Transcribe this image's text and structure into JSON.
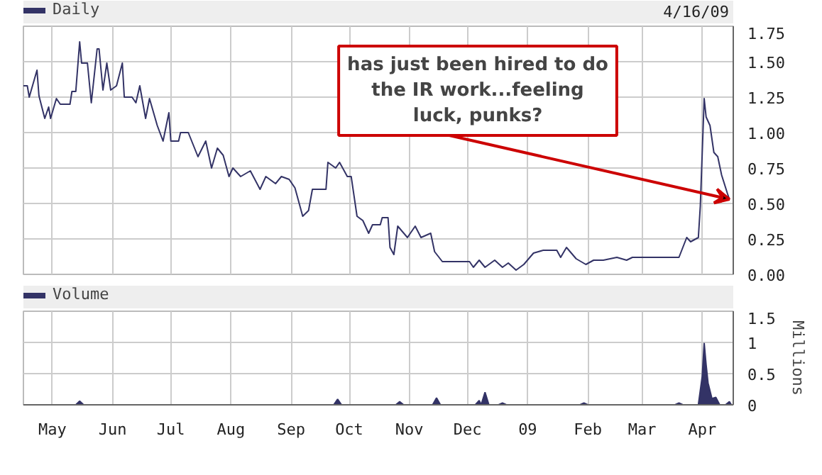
{
  "chart_data": [
    {
      "type": "line",
      "legend": "top left",
      "grid": true,
      "tick_labels": "y",
      "annotations": [
        "4/16/09",
        {
          "text": "has just been hired to do the IR work...feeling luck, punks?",
          "x": "2009-04-15",
          "y": 0.53
        }
      ],
      "xlim": [
        "2008-04-16",
        "2009-04-17"
      ],
      "xticks": [
        {
          "value": "2008-05-01",
          "label": null
        },
        {
          "value": "2008-06-01",
          "label": null
        },
        {
          "value": "2008-07-01",
          "label": null
        },
        {
          "value": "2008-08-01",
          "label": null
        },
        {
          "value": "2008-09-01",
          "label": null
        },
        {
          "value": "2008-10-01",
          "label": null
        },
        {
          "value": "2008-11-01",
          "label": null
        },
        {
          "value": "2008-12-01",
          "label": null
        },
        {
          "value": "2009-01-01",
          "label": null
        },
        {
          "value": "2009-02-01",
          "label": null
        },
        {
          "value": "2009-03-01",
          "label": null
        },
        {
          "value": "2009-04-01",
          "label": null
        }
      ],
      "ylim": [
        0,
        1.75
      ],
      "yticks": [
        {
          "value": 0,
          "label": "0.00"
        },
        {
          "value": 0.25,
          "label": "0.25"
        },
        {
          "value": 0.5,
          "label": "0.50"
        },
        {
          "value": 0.75,
          "label": "0.75"
        },
        {
          "value": 1,
          "label": "1.00"
        },
        {
          "value": 1.25,
          "label": "1.25"
        },
        {
          "value": 1.5,
          "label": "1.50"
        },
        {
          "value": 1.75,
          "label": "1.75"
        }
      ],
      "series": [
        {
          "name": "Daily",
          "color": "#333366",
          "x": [
            "2008-04-16",
            "2008-04-18",
            "2008-04-19",
            "2008-04-23",
            "2008-04-24",
            "2008-04-27",
            "2008-04-29",
            "2008-04-30",
            "2008-05-03",
            "2008-05-05",
            "2008-05-10",
            "2008-05-11",
            "2008-05-13",
            "2008-05-15",
            "2008-05-16",
            "2008-05-19",
            "2008-05-21",
            "2008-05-24",
            "2008-05-25",
            "2008-05-27",
            "2008-05-29",
            "2008-05-31",
            "2008-06-03",
            "2008-06-06",
            "2008-06-07",
            "2008-06-11",
            "2008-06-13",
            "2008-06-15",
            "2008-06-18",
            "2008-06-20",
            "2008-06-24",
            "2008-06-27",
            "2008-06-30",
            "2008-07-01",
            "2008-07-05",
            "2008-07-06",
            "2008-07-10",
            "2008-07-15",
            "2008-07-19",
            "2008-07-22",
            "2008-07-25",
            "2008-07-28",
            "2008-07-31",
            "2008-08-02",
            "2008-08-06",
            "2008-08-11",
            "2008-08-16",
            "2008-08-19",
            "2008-08-24",
            "2008-08-27",
            "2008-08-31",
            "2008-09-03",
            "2008-09-07",
            "2008-09-10",
            "2008-09-12",
            "2008-09-19",
            "2008-09-20",
            "2008-09-24",
            "2008-09-26",
            "2008-09-30",
            "2008-10-02",
            "2008-10-05",
            "2008-10-08",
            "2008-10-11",
            "2008-10-13",
            "2008-10-17",
            "2008-10-18",
            "2008-10-21",
            "2008-10-22",
            "2008-10-24",
            "2008-10-26",
            "2008-10-31",
            "2008-11-04",
            "2008-11-07",
            "2008-11-12",
            "2008-11-14",
            "2008-11-18",
            "2008-12-02",
            "2008-12-04",
            "2008-12-07",
            "2008-12-10",
            "2008-12-15",
            "2008-12-19",
            "2008-12-22",
            "2008-12-26",
            "2008-12-30",
            "2009-01-04",
            "2009-01-09",
            "2009-01-16",
            "2009-01-18",
            "2009-01-21",
            "2009-01-26",
            "2009-01-31",
            "2009-02-04",
            "2009-02-09",
            "2009-02-16",
            "2009-02-21",
            "2009-02-24",
            "2009-03-20",
            "2009-03-24",
            "2009-03-26",
            "2009-03-30",
            "2009-03-31",
            "2009-04-01",
            "2009-04-02",
            "2009-04-03",
            "2009-04-05",
            "2009-04-07",
            "2009-04-09",
            "2009-04-11",
            "2009-04-14",
            "2009-04-15"
          ],
          "values": [
            1.33,
            1.33,
            1.25,
            1.44,
            1.26,
            1.1,
            1.18,
            1.1,
            1.24,
            1.2,
            1.2,
            1.29,
            1.29,
            1.64,
            1.49,
            1.49,
            1.21,
            1.59,
            1.59,
            1.3,
            1.49,
            1.3,
            1.33,
            1.49,
            1.25,
            1.25,
            1.21,
            1.33,
            1.1,
            1.24,
            1.05,
            0.94,
            1.14,
            0.94,
            0.94,
            1.0,
            1.0,
            0.83,
            0.94,
            0.75,
            0.89,
            0.84,
            0.69,
            0.75,
            0.69,
            0.73,
            0.6,
            0.69,
            0.64,
            0.69,
            0.67,
            0.61,
            0.41,
            0.45,
            0.6,
            0.6,
            0.79,
            0.75,
            0.79,
            0.69,
            0.69,
            0.41,
            0.38,
            0.29,
            0.35,
            0.35,
            0.4,
            0.4,
            0.19,
            0.14,
            0.34,
            0.26,
            0.34,
            0.26,
            0.29,
            0.16,
            0.09,
            0.09,
            0.05,
            0.1,
            0.05,
            0.1,
            0.05,
            0.08,
            0.03,
            0.07,
            0.15,
            0.17,
            0.17,
            0.12,
            0.19,
            0.11,
            0.07,
            0.1,
            0.1,
            0.12,
            0.1,
            0.12,
            0.12,
            0.26,
            0.23,
            0.26,
            0.48,
            0.86,
            1.24,
            1.11,
            1.05,
            0.86,
            0.83,
            0.7,
            0.57,
            0.53
          ]
        }
      ]
    },
    {
      "type": "area",
      "legend": "top left",
      "grid": true,
      "ylabel": "Millions",
      "xlim": [
        "2008-04-16",
        "2009-04-17"
      ],
      "xticks": [
        {
          "value": "2008-05-01",
          "label": "May"
        },
        {
          "value": "2008-06-01",
          "label": "Jun"
        },
        {
          "value": "2008-07-01",
          "label": "Jul"
        },
        {
          "value": "2008-08-01",
          "label": "Aug"
        },
        {
          "value": "2008-09-01",
          "label": "Sep"
        },
        {
          "value": "2008-10-01",
          "label": "Oct"
        },
        {
          "value": "2008-11-01",
          "label": "Nov"
        },
        {
          "value": "2008-12-01",
          "label": "Dec"
        },
        {
          "value": "2009-01-01",
          "label": "09"
        },
        {
          "value": "2009-02-01",
          "label": "Feb"
        },
        {
          "value": "2009-03-01",
          "label": "Mar"
        },
        {
          "value": "2009-04-01",
          "label": "Apr"
        }
      ],
      "ylim": [
        0,
        1.5
      ],
      "yticks": [
        0,
        0.5,
        1,
        1.5
      ],
      "series": [
        {
          "name": "Volume",
          "color": "#333366",
          "x": [
            "2008-04-16",
            "2008-05-13",
            "2008-05-15",
            "2008-05-17",
            "2008-09-23",
            "2008-09-25",
            "2008-09-27",
            "2008-10-25",
            "2008-10-27",
            "2008-10-29",
            "2008-11-13",
            "2008-11-15",
            "2008-11-17",
            "2008-12-05",
            "2008-12-07",
            "2008-12-08",
            "2008-12-10",
            "2008-12-12",
            "2008-12-17",
            "2008-12-19",
            "2008-12-21",
            "2009-01-28",
            "2009-01-30",
            "2009-02-01",
            "2009-03-18",
            "2009-03-20",
            "2009-03-22",
            "2009-03-30",
            "2009-04-01",
            "2009-04-02",
            "2009-04-03",
            "2009-04-04",
            "2009-04-06",
            "2009-04-08",
            "2009-04-10",
            "2009-04-13",
            "2009-04-15",
            "2009-04-16"
          ],
          "values": [
            0,
            0,
            0.06,
            0,
            0,
            0.09,
            0,
            0,
            0.05,
            0,
            0,
            0.11,
            0,
            0,
            0.07,
            0,
            0.2,
            0,
            0,
            0.03,
            0,
            0,
            0.03,
            0,
            0,
            0.03,
            0,
            0,
            0.46,
            0.99,
            0.64,
            0.35,
            0.1,
            0.12,
            0,
            0,
            0.05,
            0
          ]
        }
      ]
    }
  ]
}
